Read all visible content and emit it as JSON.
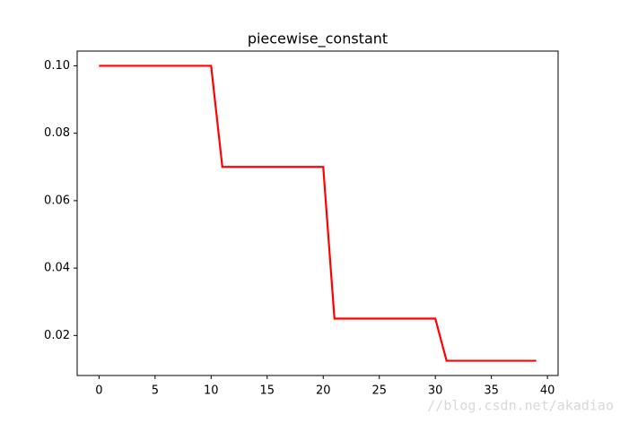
{
  "chart_data": {
    "type": "line",
    "title": "piecewise_constant",
    "x": [
      0,
      1,
      2,
      3,
      4,
      5,
      6,
      7,
      8,
      9,
      10,
      11,
      12,
      13,
      14,
      15,
      16,
      17,
      18,
      19,
      20,
      21,
      22,
      23,
      24,
      25,
      26,
      27,
      28,
      29,
      30,
      31,
      32,
      33,
      34,
      35,
      36,
      37,
      38,
      39
    ],
    "values": [
      0.1,
      0.1,
      0.1,
      0.1,
      0.1,
      0.1,
      0.1,
      0.1,
      0.1,
      0.1,
      0.1,
      0.07,
      0.07,
      0.07,
      0.07,
      0.07,
      0.07,
      0.07,
      0.07,
      0.07,
      0.07,
      0.025,
      0.025,
      0.025,
      0.025,
      0.025,
      0.025,
      0.025,
      0.025,
      0.025,
      0.025,
      0.0125,
      0.0125,
      0.0125,
      0.0125,
      0.0125,
      0.0125,
      0.0125,
      0.0125,
      0.0125
    ],
    "color": "#ff0000",
    "xlim": [
      -1.95,
      40.95
    ],
    "xticks": [
      0,
      5,
      10,
      15,
      20,
      25,
      30,
      35,
      40
    ],
    "ylim": [
      0.008125,
      0.104375
    ],
    "yticks": [
      0.02,
      0.04,
      0.06,
      0.08,
      {
        "value": 0.1,
        "label": "0.10"
      }
    ],
    "watermark": "//blog.csdn.net/akadiao"
  }
}
